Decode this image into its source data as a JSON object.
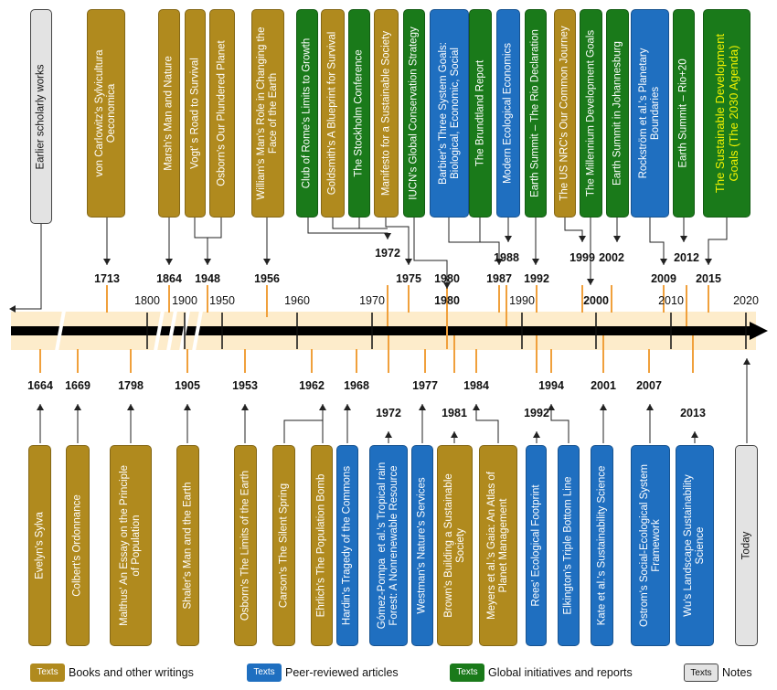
{
  "decades": [
    "1800",
    "1900",
    "1950",
    "1960",
    "1970",
    "1980",
    "1990",
    "2000",
    "2010",
    "2020"
  ],
  "bold_decades": [
    "1980",
    "2000"
  ],
  "top_events": [
    {
      "text": "von Carlowitz's Sylvicultura\nOeconomica",
      "type": "book"
    },
    {
      "text": "Marsh's Man and Nature",
      "type": "book"
    },
    {
      "text": "Vogt' s Road to Survival",
      "type": "book"
    },
    {
      "text": "Osborn's Our Plundered Planet",
      "type": "book"
    },
    {
      "text": "William's Man's Role in Changing the\nFace of the Earth",
      "type": "book"
    },
    {
      "text": "Club of Rome's Limits to Growth",
      "type": "global"
    },
    {
      "text": "Goldsmith's A Blueprint for Survival",
      "type": "book"
    },
    {
      "text": "The Stockholm Conference",
      "type": "global"
    },
    {
      "text": "Manifesto for a Sustainable Society",
      "type": "book"
    },
    {
      "text": "IUCN's Global Conservation Strategy",
      "type": "global"
    },
    {
      "text": "Barbier's Three System Goals:\nBiological, Economic, Social",
      "type": "peer"
    },
    {
      "text": "The Brundtland Report",
      "type": "global"
    },
    {
      "text": "Modern Ecological Economics",
      "type": "peer"
    },
    {
      "text": "Earth Summit – The Rio Declaration",
      "type": "global"
    },
    {
      "text": "The US NRC's Our Common Journey",
      "type": "book"
    },
    {
      "text": "The Millennium Development Goals",
      "type": "global"
    },
    {
      "text": "Earth Summit in Johannesburg",
      "type": "global"
    },
    {
      "text": "Rockström et al.'s Planetary\nBoundaries",
      "type": "peer"
    },
    {
      "text": "Earth Summit – Rio+20",
      "type": "global"
    },
    {
      "text": "The Sustainable Development\nGoals (The 2030 Agenda)",
      "type": "global"
    }
  ],
  "top_years": [
    "1713",
    "1864",
    "1948",
    "1956",
    "1972",
    "1975",
    "1980",
    "1987",
    "1988",
    "1992",
    "1999",
    "2002",
    "2009",
    "2012",
    "2015"
  ],
  "bottom_years": [
    "1664",
    "1669",
    "1798",
    "1905",
    "1953",
    "1962",
    "1968",
    "1972",
    "1977",
    "1981",
    "1984",
    "1992",
    "1994",
    "2001",
    "2007",
    "2013"
  ],
  "bottom_events": [
    {
      "text": "Evelyn's Sylva",
      "type": "book"
    },
    {
      "text": "Colbert's Ordonnance",
      "type": "book"
    },
    {
      "text": "Malthus' An Essay on the Principle\nof Population",
      "type": "book"
    },
    {
      "text": "Shaler's Man and the Earth",
      "type": "book"
    },
    {
      "text": "Osborn's The Limits of the Earth",
      "type": "book"
    },
    {
      "text": "Carson's The Silent Spring",
      "type": "book"
    },
    {
      "text": "Ehrlich's The Population Bomb",
      "type": "book"
    },
    {
      "text": "Hardin's Tragedy of the Commons",
      "type": "peer"
    },
    {
      "text": "Gómez-Pompa  et al.'s Tropical rain\nForest: A Nonrenewable Resource",
      "type": "peer"
    },
    {
      "text": "Westman's Nature's Services",
      "type": "peer"
    },
    {
      "text": "Brown's Building a Sustainable\nSociety",
      "type": "book"
    },
    {
      "text": "Meyers et al.'s Gaia: An Atlas of\nPlanet Management",
      "type": "book"
    },
    {
      "text": "Rees' Ecological Footprint",
      "type": "peer"
    },
    {
      "text": "Elkington's Triple Bottom Line",
      "type": "peer"
    },
    {
      "text": "Kate et al.'s Sustainability Science",
      "type": "peer"
    },
    {
      "text": "Ostrom's Social-Ecological System\nFramework",
      "type": "peer"
    },
    {
      "text": "Wu's Landscape Sustainability\nScience",
      "type": "peer"
    }
  ],
  "notes": {
    "earlier": "Earlier scholarly works",
    "today": "Today"
  },
  "legend": [
    {
      "swatch": "Texts",
      "label": "Books and other writings",
      "type": "book"
    },
    {
      "swatch": "Texts",
      "label": "Peer-reviewed articles",
      "type": "peer"
    },
    {
      "swatch": "Texts",
      "label": "Global initiatives and reports",
      "type": "global"
    },
    {
      "swatch": "Texts",
      "label": "Notes",
      "type": "note"
    }
  ],
  "colors": {
    "book": "#b08a1e",
    "peer": "#1f6fc0",
    "global": "#1a7a1a",
    "note": "#e3e3e3",
    "band": "#fdeccb",
    "tick": "#f0a03c",
    "highlight": "#f2f200"
  }
}
